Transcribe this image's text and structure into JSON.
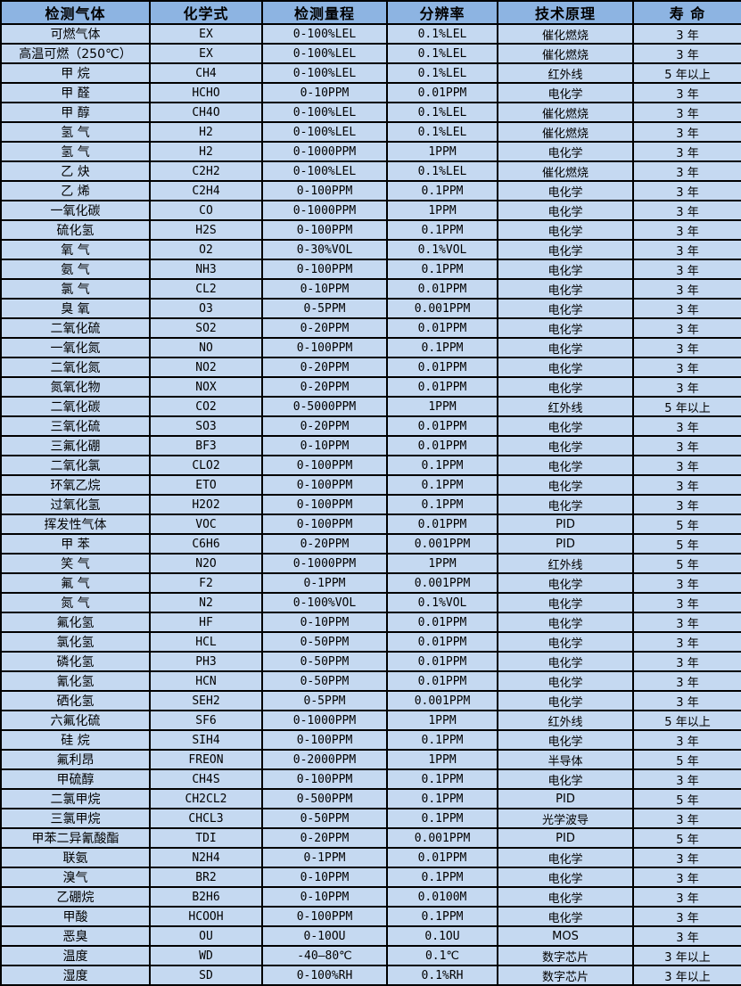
{
  "colors": {
    "header_bg": "#8db4e2",
    "row_bg": "#c5d9f1",
    "border": "#000000",
    "text": "#000000"
  },
  "table": {
    "headers": [
      "检测气体",
      "化学式",
      "检测量程",
      "分辨率",
      "技术原理",
      "寿 命"
    ],
    "rows": [
      [
        "可燃气体",
        "EX",
        "0-100%LEL",
        "0.1%LEL",
        "催化燃烧",
        "3 年"
      ],
      [
        "高温可燃（250℃）",
        "EX",
        "0-100%LEL",
        "0.1%LEL",
        "催化燃烧",
        "3 年"
      ],
      [
        "甲 烷",
        "CH4",
        "0-100%LEL",
        "0.1%LEL",
        "红外线",
        "5 年以上"
      ],
      [
        "甲 醛",
        "HCHO",
        "0-10PPM",
        "0.01PPM",
        "电化学",
        "3 年"
      ],
      [
        "甲 醇",
        "CH4O",
        "0-100%LEL",
        "0.1%LEL",
        "催化燃烧",
        "3 年"
      ],
      [
        "氢 气",
        "H2",
        "0-100%LEL",
        "0.1%LEL",
        "催化燃烧",
        "3 年"
      ],
      [
        "氢 气",
        "H2",
        "0-1000PPM",
        "1PPM",
        "电化学",
        "3 年"
      ],
      [
        "乙 炔",
        "C2H2",
        "0-100%LEL",
        "0.1%LEL",
        "催化燃烧",
        "3 年"
      ],
      [
        "乙 烯",
        "C2H4",
        "0-100PPM",
        "0.1PPM",
        "电化学",
        "3 年"
      ],
      [
        "一氧化碳",
        "CO",
        "0-1000PPM",
        "1PPM",
        "电化学",
        "3 年"
      ],
      [
        "硫化氢",
        "H2S",
        "0-100PPM",
        "0.1PPM",
        "电化学",
        "3 年"
      ],
      [
        "氧 气",
        "O2",
        "0-30%VOL",
        "0.1%VOL",
        "电化学",
        "3 年"
      ],
      [
        "氨 气",
        "NH3",
        "0-100PPM",
        "0.1PPM",
        "电化学",
        "3 年"
      ],
      [
        "氯 气",
        "CL2",
        "0-10PPM",
        "0.01PPM",
        "电化学",
        "3 年"
      ],
      [
        "臭 氧",
        "O3",
        "0-5PPM",
        "0.001PPM",
        "电化学",
        "3 年"
      ],
      [
        "二氧化硫",
        "SO2",
        "0-20PPM",
        "0.01PPM",
        "电化学",
        "3 年"
      ],
      [
        "一氧化氮",
        "NO",
        "0-100PPM",
        "0.1PPM",
        "电化学",
        "3 年"
      ],
      [
        "二氧化氮",
        "NO2",
        "0-20PPM",
        "0.01PPM",
        "电化学",
        "3 年"
      ],
      [
        "氮氧化物",
        "NOX",
        "0-20PPM",
        "0.01PPM",
        "电化学",
        "3 年"
      ],
      [
        "二氧化碳",
        "CO2",
        "0-5000PPM",
        "1PPM",
        "红外线",
        "5 年以上"
      ],
      [
        "三氧化硫",
        "SO3",
        "0-20PPM",
        "0.01PPM",
        "电化学",
        "3 年"
      ],
      [
        "三氟化硼",
        "BF3",
        "0-10PPM",
        "0.01PPM",
        "电化学",
        "3 年"
      ],
      [
        "二氧化氯",
        "CLO2",
        "0-100PPM",
        "0.1PPM",
        "电化学",
        "3 年"
      ],
      [
        "环氧乙烷",
        "ETO",
        "0-100PPM",
        "0.1PPM",
        "电化学",
        "3 年"
      ],
      [
        "过氧化氢",
        "H2O2",
        "0-100PPM",
        "0.1PPM",
        "电化学",
        "3 年"
      ],
      [
        "挥发性气体",
        "VOC",
        "0-100PPM",
        "0.01PPM",
        "PID",
        "5 年"
      ],
      [
        "甲 苯",
        "C6H6",
        "0-20PPM",
        "0.001PPM",
        "PID",
        "5 年"
      ],
      [
        "笑 气",
        "N2O",
        "0-1000PPM",
        "1PPM",
        "红外线",
        "5 年"
      ],
      [
        "氟 气",
        "F2",
        "0-1PPM",
        "0.001PPM",
        "电化学",
        "3 年"
      ],
      [
        "氮 气",
        "N2",
        "0-100%VOL",
        "0.1%VOL",
        "电化学",
        "3 年"
      ],
      [
        "氟化氢",
        "HF",
        "0-10PPM",
        "0.01PPM",
        "电化学",
        "3 年"
      ],
      [
        "氯化氢",
        "HCL",
        "0-50PPM",
        "0.01PPM",
        "电化学",
        "3 年"
      ],
      [
        "磷化氢",
        "PH3",
        "0-50PPM",
        "0.01PPM",
        "电化学",
        "3 年"
      ],
      [
        "氰化氢",
        "HCN",
        "0-50PPM",
        "0.01PPM",
        "电化学",
        "3 年"
      ],
      [
        "硒化氢",
        "SEH2",
        "0-5PPM",
        "0.001PPM",
        "电化学",
        "3 年"
      ],
      [
        "六氟化硫",
        "SF6",
        "0-1000PPM",
        "1PPM",
        "红外线",
        "5 年以上"
      ],
      [
        "硅 烷",
        "SIH4",
        "0-100PPM",
        "0.1PPM",
        "电化学",
        "3 年"
      ],
      [
        "氟利昂",
        "FREON",
        "0-2000PPM",
        "1PPM",
        "半导体",
        "5 年"
      ],
      [
        "甲硫醇",
        "CH4S",
        "0-100PPM",
        "0.1PPM",
        "电化学",
        "3 年"
      ],
      [
        "二氯甲烷",
        "CH2CL2",
        "0-500PPM",
        "0.1PPM",
        "PID",
        "5 年"
      ],
      [
        "三氯甲烷",
        "CHCL3",
        "0-50PPM",
        "0.1PPM",
        "光学波导",
        "3 年"
      ],
      [
        "甲苯二异氰酸酯",
        "TDI",
        "0-20PPM",
        "0.001PPM",
        "PID",
        "5 年"
      ],
      [
        "联氨",
        "N2H4",
        "0-1PPM",
        "0.01PPM",
        "电化学",
        "3 年"
      ],
      [
        "溴气",
        "BR2",
        "0-10PPM",
        "0.1PPM",
        "电化学",
        "3 年"
      ],
      [
        "乙硼烷",
        "B2H6",
        "0-10PPM",
        "0.0100M",
        "电化学",
        "3 年"
      ],
      [
        "甲酸",
        "HCOOH",
        "0-100PPM",
        "0.1PPM",
        "电化学",
        "3 年"
      ],
      [
        "恶臭",
        "OU",
        "0-10OU",
        "0.1OU",
        "MOS",
        "3 年"
      ],
      [
        "温度",
        "WD",
        "-40—80℃",
        "0.1℃",
        "数字芯片",
        "3 年以上"
      ],
      [
        "湿度",
        "SD",
        "0-100%RH",
        "0.1%RH",
        "数字芯片",
        "3 年以上"
      ]
    ]
  }
}
